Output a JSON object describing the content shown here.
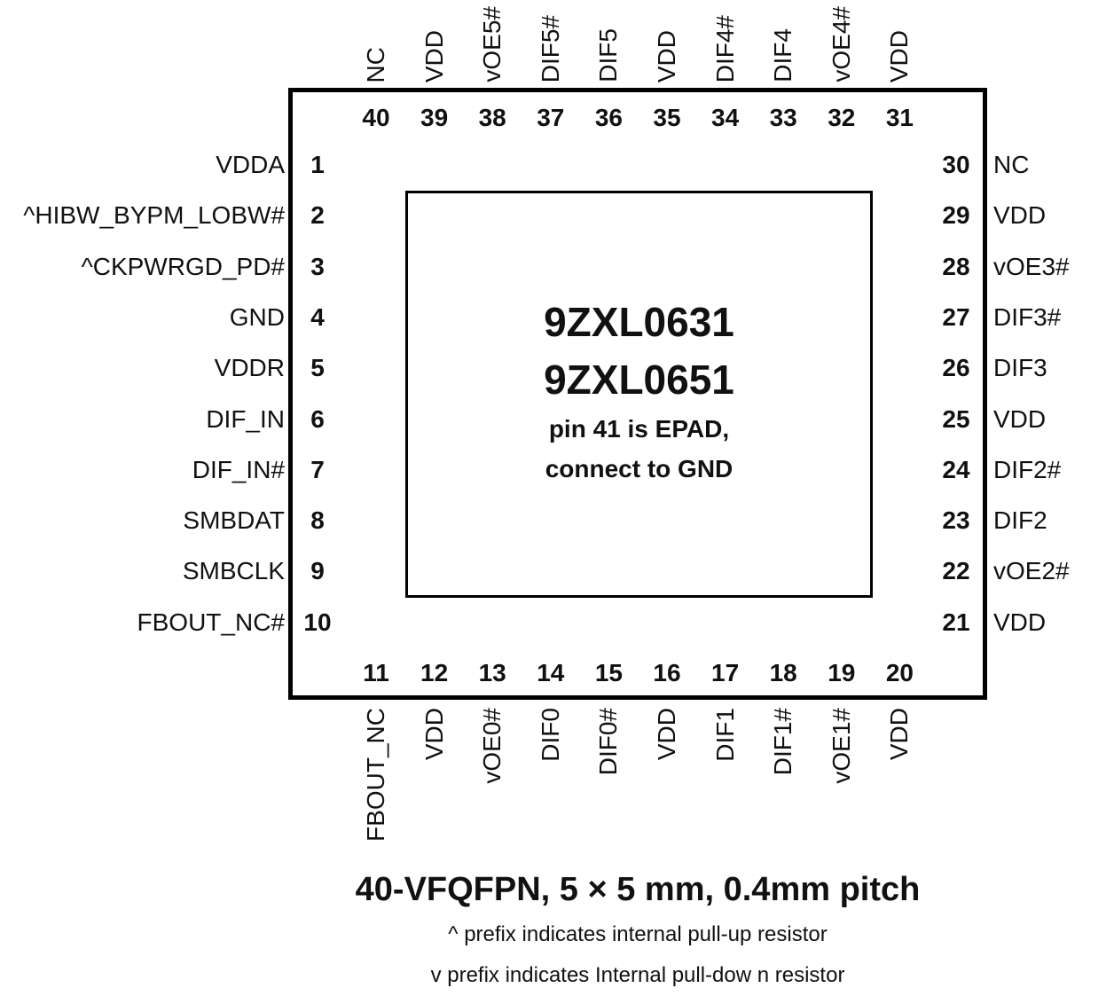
{
  "package": {
    "part_numbers": [
      "9ZXL0631",
      "9ZXL0651"
    ],
    "epad_note": [
      "pin 41 is EPAD,",
      "connect to GND"
    ]
  },
  "pins": {
    "left": [
      {
        "num": "1",
        "name": "VDDA"
      },
      {
        "num": "2",
        "name": "^HIBW_BYPM_LOBW#"
      },
      {
        "num": "3",
        "name": "^CKPWRGD_PD#"
      },
      {
        "num": "4",
        "name": "GND"
      },
      {
        "num": "5",
        "name": "VDDR"
      },
      {
        "num": "6",
        "name": "DIF_IN"
      },
      {
        "num": "7",
        "name": "DIF_IN#"
      },
      {
        "num": "8",
        "name": "SMBDAT"
      },
      {
        "num": "9",
        "name": "SMBCLK"
      },
      {
        "num": "10",
        "name": "FBOUT_NC#"
      }
    ],
    "bottom": [
      {
        "num": "11",
        "name": "FBOUT_NC"
      },
      {
        "num": "12",
        "name": "VDD"
      },
      {
        "num": "13",
        "name": "vOE0#"
      },
      {
        "num": "14",
        "name": "DIF0"
      },
      {
        "num": "15",
        "name": "DIF0#"
      },
      {
        "num": "16",
        "name": "VDD"
      },
      {
        "num": "17",
        "name": "DIF1"
      },
      {
        "num": "18",
        "name": "DIF1#"
      },
      {
        "num": "19",
        "name": "vOE1#"
      },
      {
        "num": "20",
        "name": "VDD"
      }
    ],
    "right": [
      {
        "num": "30",
        "name": "NC"
      },
      {
        "num": "29",
        "name": "VDD"
      },
      {
        "num": "28",
        "name": "vOE3#"
      },
      {
        "num": "27",
        "name": "DIF3#"
      },
      {
        "num": "26",
        "name": "DIF3"
      },
      {
        "num": "25",
        "name": "VDD"
      },
      {
        "num": "24",
        "name": "DIF2#"
      },
      {
        "num": "23",
        "name": "DIF2"
      },
      {
        "num": "22",
        "name": "vOE2#"
      },
      {
        "num": "21",
        "name": "VDD"
      }
    ],
    "top": [
      {
        "num": "40",
        "name": "NC"
      },
      {
        "num": "39",
        "name": "VDD"
      },
      {
        "num": "38",
        "name": "vOE5#"
      },
      {
        "num": "37",
        "name": "DIF5#"
      },
      {
        "num": "36",
        "name": "DIF5"
      },
      {
        "num": "35",
        "name": "VDD"
      },
      {
        "num": "34",
        "name": "DIF4#"
      },
      {
        "num": "33",
        "name": "DIF4"
      },
      {
        "num": "32",
        "name": "vOE4#"
      },
      {
        "num": "31",
        "name": "VDD"
      }
    ]
  },
  "caption": {
    "title": "40-VFQFPN, 5 × 5 mm, 0.4mm pitch",
    "notes": [
      "^ prefix  indicates internal pull-up resistor",
      "v  prefix  indicates  Internal  pull-dow n  resistor"
    ]
  }
}
